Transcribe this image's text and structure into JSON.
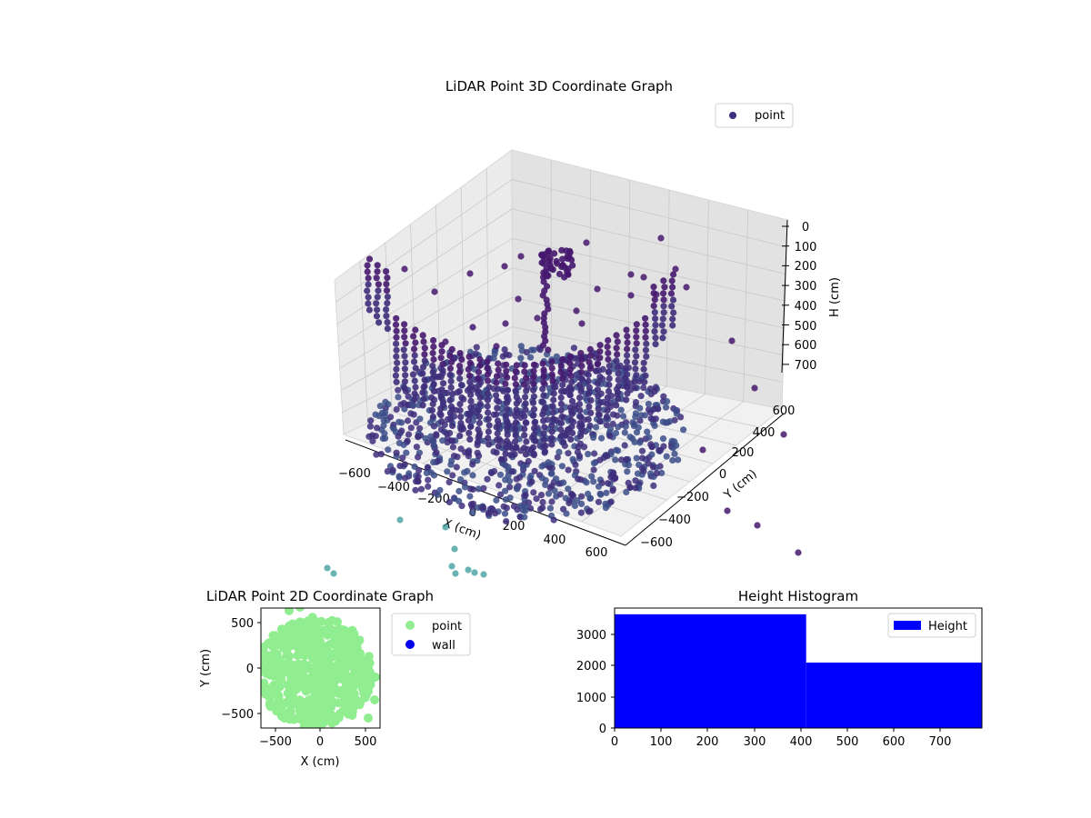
{
  "panel3d": {
    "title": "LiDAR Point 3D Coordinate Graph",
    "xlabel": "X (cm)",
    "ylabel": "Y (cm)",
    "zlabel": "H (cm)",
    "legend": "point",
    "point_color": "#3b2f7e",
    "x_ticks": [
      "−600",
      "−400",
      "−200",
      "0",
      "200",
      "400",
      "600"
    ],
    "y_ticks": [
      "−600",
      "−400",
      "−200",
      "0",
      "200",
      "400",
      "600"
    ],
    "z_ticks": [
      "0",
      "100",
      "200",
      "300",
      "400",
      "500",
      "600",
      "700"
    ]
  },
  "panel2d": {
    "title": "LiDAR Point 2D Coordinate Graph",
    "xlabel": "X (cm)",
    "ylabel": "Y (cm)",
    "x_ticks": [
      "−500",
      "0",
      "500"
    ],
    "y_ticks": [
      "500",
      "0",
      "−500"
    ],
    "legend": [
      "point",
      "wall"
    ],
    "point_color": "#90ee90",
    "wall_color": "#0000ee"
  },
  "hist": {
    "title": "Height Histogram",
    "legend": "Height",
    "color": "#0000ff",
    "x_ticks": [
      "0",
      "100",
      "200",
      "300",
      "400",
      "500",
      "600",
      "700"
    ],
    "y_ticks": [
      "0",
      "1000",
      "2000",
      "3000"
    ]
  },
  "chart_data": [
    {
      "type": "scatter",
      "title": "LiDAR Point 3D Coordinate Graph",
      "xlabel": "X (cm)",
      "ylabel": "Y (cm)",
      "zlabel": "H (cm)",
      "xlim": [
        -650,
        650
      ],
      "ylim": [
        -650,
        650
      ],
      "zlim": [
        750,
        0
      ],
      "series": [
        {
          "name": "point"
        }
      ]
    },
    {
      "type": "scatter",
      "title": "LiDAR Point 2D Coordinate Graph",
      "xlabel": "X (cm)",
      "ylabel": "Y (cm)",
      "xlim": [
        -650,
        650
      ],
      "ylim": [
        -650,
        650
      ],
      "series": [
        {
          "name": "point"
        },
        {
          "name": "wall"
        }
      ]
    },
    {
      "type": "bar",
      "title": "Height Histogram",
      "bins": [
        [
          0,
          412,
          3650
        ],
        [
          412,
          790,
          2100
        ]
      ],
      "xlim": [
        0,
        790
      ],
      "ylim": [
        0,
        3850
      ],
      "series": [
        {
          "name": "Height"
        }
      ]
    }
  ]
}
